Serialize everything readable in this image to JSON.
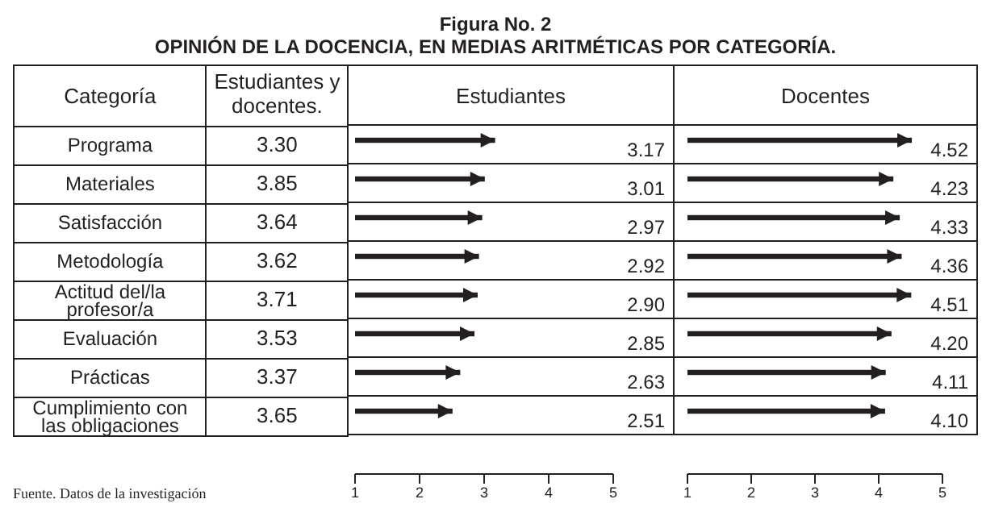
{
  "chart_data": [
    {
      "type": "other",
      "title": "Figura No. 2",
      "subtitle": "OPINIÓN DE LA DOCENCIA, EN MEDIAS ARITMÉTICAS POR CATEGORÍA.",
      "ylabel": "Categoría",
      "xlabel": "Estudiantes y docentes.",
      "categories": [
        "Programa",
        "Materiales",
        "Satisfacción",
        "Metodología",
        "Actitud del/la profesor/a",
        "Evaluación",
        "Prácticas",
        "Cumplimiento con las obligaciones"
      ],
      "values": [
        3.3,
        3.85,
        3.64,
        3.62,
        3.71,
        3.53,
        3.37,
        3.65
      ],
      "value_labels": [
        "3.30",
        "3.85",
        "3.64",
        "3.62",
        "3.71",
        "3.53",
        "3.37",
        "3.65"
      ],
      "annotations": [
        "Fuente. Datos de la investigación"
      ]
    },
    {
      "type": "bar",
      "orientation": "horizontal",
      "title": "Estudiantes",
      "categories": [
        null,
        null,
        null,
        null,
        null,
        null,
        null,
        null
      ],
      "values": [
        3.17,
        3.01,
        2.97,
        2.92,
        2.9,
        2.85,
        2.63,
        2.51
      ],
      "value_labels": [
        "3.17",
        "3.01",
        "2.97",
        "2.92",
        "2.90",
        "2.85",
        "2.63",
        "2.51"
      ],
      "color": "#231f20",
      "xlim": [
        1,
        5
      ],
      "xticks": [
        1,
        2,
        3,
        4,
        5
      ],
      "tick_labels": "x"
    },
    {
      "type": "bar",
      "orientation": "horizontal",
      "title": "Docentes",
      "categories": [
        null,
        null,
        null,
        null,
        null,
        null,
        null,
        null
      ],
      "values": [
        4.52,
        4.23,
        4.33,
        4.36,
        4.51,
        4.2,
        4.11,
        4.1
      ],
      "value_labels": [
        "4.52",
        "4.23",
        "4.33",
        "4.36",
        "4.51",
        "4.20",
        "4.11",
        "4.10"
      ],
      "color": "#231f20",
      "xlim": [
        1,
        5
      ],
      "xticks": [
        1,
        2,
        3,
        4,
        5
      ],
      "tick_labels": "x"
    }
  ]
}
